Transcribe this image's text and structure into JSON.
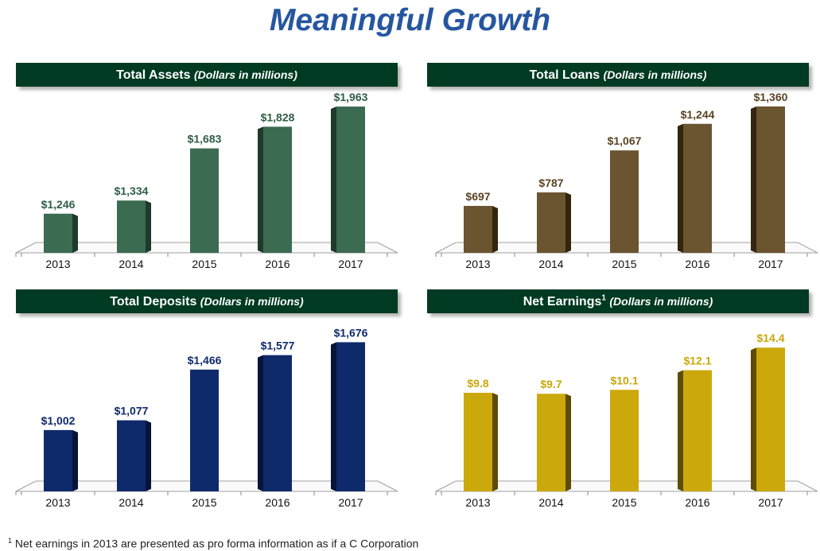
{
  "title": "Meaningful Growth",
  "footnote": {
    "marker": "1",
    "text": "Net earnings in 2013 are presented as pro forma information as if a C Corporation"
  },
  "chart_data": [
    {
      "id": "assets",
      "type": "bar",
      "title": "Total Assets",
      "subtitle": "(Dollars in millions)",
      "title_sup": "",
      "categories": [
        "2013",
        "2014",
        "2015",
        "2016",
        "2017"
      ],
      "values": [
        1246,
        1334,
        1683,
        1828,
        1963
      ],
      "labels": [
        "$1,246",
        "$1,334",
        "$1,683",
        "$1,828",
        "$1,963"
      ],
      "ylim": [
        1000,
        2064
      ],
      "color": "#3B6B51",
      "label_color": "#2F5E45",
      "side_color": "#1E3A2A",
      "grid": false
    },
    {
      "id": "loans",
      "type": "bar",
      "title": "Total Loans",
      "subtitle": "(Dollars in millions)",
      "title_sup": "",
      "categories": [
        "2013",
        "2014",
        "2015",
        "2016",
        "2017"
      ],
      "values": [
        697,
        787,
        1067,
        1244,
        1360
      ],
      "labels": [
        "$697",
        "$787",
        "$1,067",
        "$1,244",
        "$1,360"
      ],
      "ylim": [
        400,
        1460
      ],
      "color": "#6B5430",
      "label_color": "#5A4423",
      "side_color": "#33260F",
      "grid": false
    },
    {
      "id": "deposits",
      "type": "bar",
      "title": "Total Deposits",
      "subtitle": "(Dollars in millions)",
      "title_sup": "",
      "categories": [
        "2013",
        "2014",
        "2015",
        "2016",
        "2017"
      ],
      "values": [
        1002,
        1077,
        1466,
        1577,
        1676
      ],
      "labels": [
        "$1,002",
        "$1,077",
        "$1,466",
        "$1,577",
        "$1,676"
      ],
      "ylim": [
        550,
        1770
      ],
      "color": "#0F2A6B",
      "label_color": "#0F2A6B",
      "side_color": "#06143A",
      "grid": false
    },
    {
      "id": "earnings",
      "type": "bar",
      "title": "Net Earnings",
      "subtitle": "(Dollars in millions)",
      "title_sup": "1",
      "categories": [
        "2013",
        "2014",
        "2015",
        "2016",
        "2017"
      ],
      "values": [
        9.8,
        9.7,
        10.1,
        12.1,
        14.4
      ],
      "labels": [
        "$9.8",
        "$9.7",
        "$10.1",
        "$12.1",
        "$14.4"
      ],
      "ylim": [
        0,
        16.2
      ],
      "color": "#CBA80C",
      "label_color": "#C9A70A",
      "side_color": "#5E4C05",
      "grid": false
    }
  ]
}
